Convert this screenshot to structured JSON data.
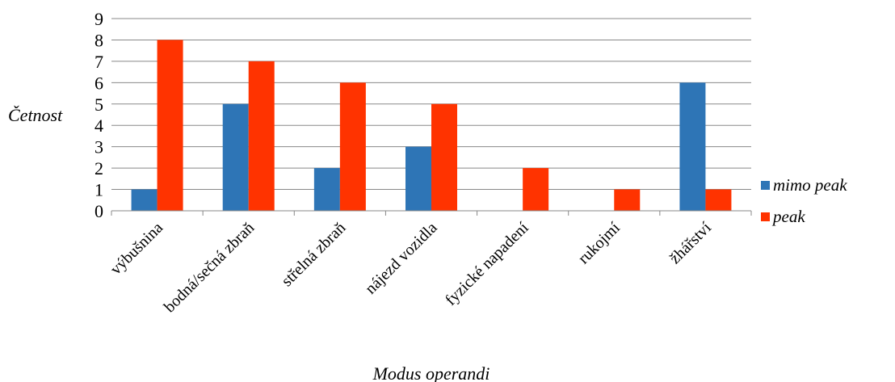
{
  "chart_data": {
    "type": "bar",
    "title": "",
    "xlabel": "Modus operandi",
    "ylabel": "Četnost",
    "ylim": [
      0,
      9
    ],
    "yticks": [
      0,
      1,
      2,
      3,
      4,
      5,
      6,
      7,
      8,
      9
    ],
    "grid": true,
    "legend_position": "right",
    "categories": [
      "výbušnina",
      "bodná/sečná zbraň",
      "střelná zbraň",
      "nájezd vozidla",
      "fyzické napadení",
      "rukojmí",
      "žhářství"
    ],
    "series": [
      {
        "name": "mimo peak",
        "color": "#2e75b6",
        "values": [
          1,
          5,
          2,
          3,
          0,
          0,
          6
        ]
      },
      {
        "name": "peak",
        "color": "#ff3300",
        "values": [
          8,
          7,
          6,
          5,
          2,
          1,
          1
        ]
      }
    ]
  }
}
